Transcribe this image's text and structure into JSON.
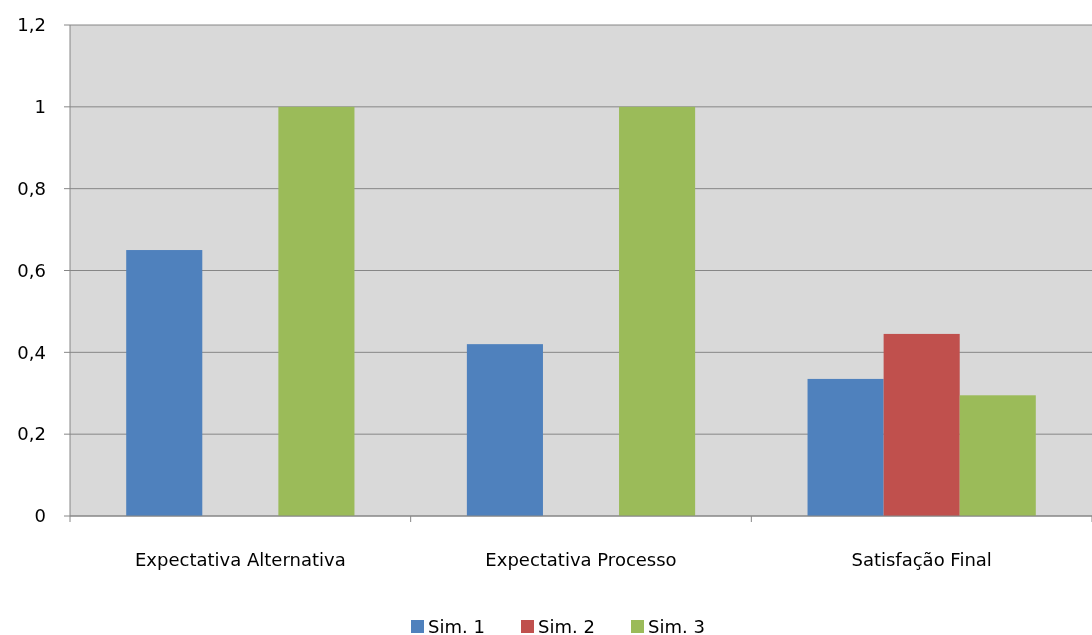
{
  "chart_data": {
    "type": "bar",
    "categories": [
      "Expectativa Alternativa",
      "Expectativa Processo",
      "Satisfação Final"
    ],
    "series": [
      {
        "name": "Sim. 1",
        "color": "#4f81bd",
        "values": [
          0.65,
          0.42,
          0.335
        ]
      },
      {
        "name": "Sim. 2",
        "color": "#c0504d",
        "values": [
          null,
          null,
          0.445
        ]
      },
      {
        "name": "Sim. 3",
        "color": "#9bbb59",
        "values": [
          1,
          1,
          0.295
        ]
      }
    ],
    "ylim": [
      0,
      1.2
    ],
    "yticks": [
      0,
      {
        "value": 0.2,
        "label": "0,2"
      },
      {
        "value": 0.4,
        "label": "0,4"
      },
      {
        "value": 0.6,
        "label": "0,6"
      },
      {
        "value": 0.8,
        "label": "0,8"
      },
      1,
      {
        "value": 1.2,
        "label": "1,2"
      }
    ],
    "grid": "y",
    "legend": "bottom"
  }
}
